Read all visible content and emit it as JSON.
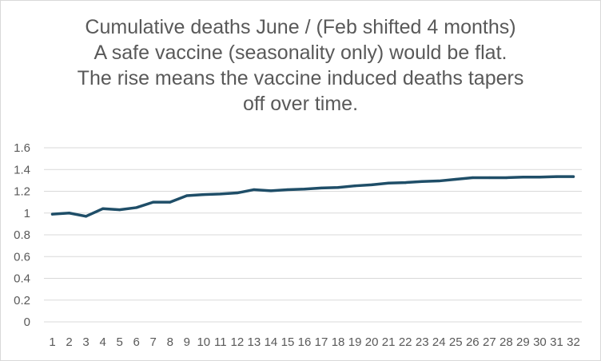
{
  "chart_data": {
    "type": "line",
    "title_lines": [
      "Cumulative deaths June / (Feb shifted 4 months)",
      "A safe vaccine (seasonality only) would be flat.",
      "The rise means the vaccine induced deaths tapers",
      "off over time."
    ],
    "xlabel": "",
    "ylabel": "",
    "categories": [
      "1",
      "2",
      "3",
      "4",
      "5",
      "6",
      "7",
      "8",
      "9",
      "10",
      "11",
      "12",
      "13",
      "14",
      "15",
      "16",
      "17",
      "18",
      "19",
      "20",
      "21",
      "22",
      "23",
      "24",
      "25",
      "26",
      "27",
      "28",
      "29",
      "30",
      "31",
      "32"
    ],
    "y_ticks": [
      "0",
      "0.2",
      "0.4",
      "0.6",
      "0.8",
      "1",
      "1.2",
      "1.4",
      "1.6"
    ],
    "ylim": [
      0,
      1.6
    ],
    "grid": true,
    "legend": "none",
    "series": [
      {
        "color": "#1f4e68",
        "values": [
          0.99,
          1.0,
          0.97,
          1.04,
          1.03,
          1.05,
          1.1,
          1.1,
          1.16,
          1.17,
          1.175,
          1.185,
          1.215,
          1.205,
          1.215,
          1.22,
          1.23,
          1.235,
          1.25,
          1.26,
          1.275,
          1.28,
          1.29,
          1.295,
          1.31,
          1.325,
          1.325,
          1.325,
          1.33,
          1.33,
          1.335,
          1.335
        ]
      }
    ],
    "colors": {
      "gridline": "#d9d9d9",
      "text": "#595959",
      "line": "#1f4e68"
    }
  }
}
